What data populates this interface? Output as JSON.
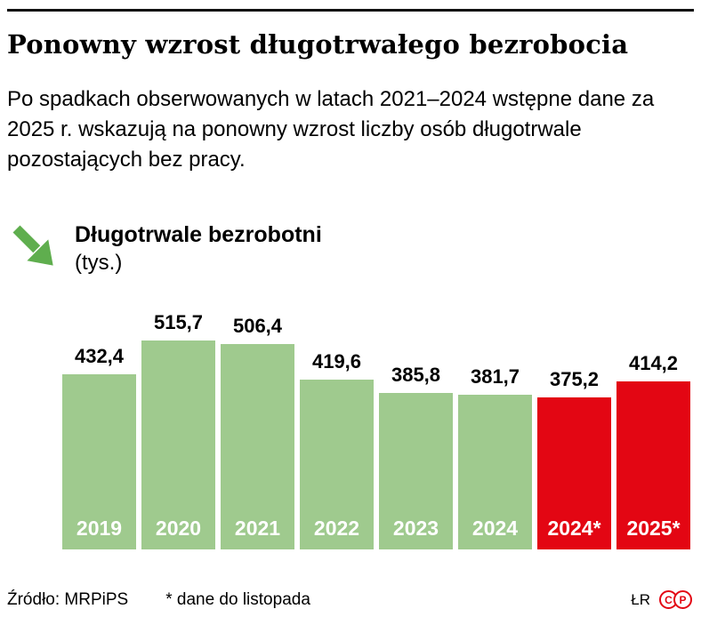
{
  "header": {
    "title": "Ponowny wzrost długotrwałego bezrobocia",
    "intro": "Po spadkach obserwowanych w latach 2021–2024 wstępne dane za 2025 r. wskazują na ponowny wzrost liczby osób długotrwale pozostających bez pracy."
  },
  "legend": {
    "label": "Długotrwale bezrobotni",
    "unit": "(tys.)"
  },
  "chart_data": {
    "type": "bar",
    "title": "Długotrwale bezrobotni",
    "unit": "tys.",
    "categories": [
      "2019",
      "2020",
      "2021",
      "2022",
      "2023",
      "2024",
      "2024*",
      "2025*"
    ],
    "values": [
      432.4,
      515.7,
      506.4,
      419.6,
      385.8,
      381.7,
      375.2,
      414.2
    ],
    "value_labels": [
      "432,4",
      "515,7",
      "506,4",
      "419,6",
      "385,8",
      "381,7",
      "375,2",
      "414,2"
    ],
    "bar_colors": [
      "#9fca8e",
      "#9fca8e",
      "#9fca8e",
      "#9fca8e",
      "#9fca8e",
      "#9fca8e",
      "#e30613",
      "#e30613"
    ],
    "ylim": [
      0,
      515.7
    ],
    "grid": false,
    "legend_position": "none"
  },
  "colors": {
    "green": "#9fca8e",
    "red": "#e30613",
    "arrow": "#5fae4e",
    "rule": "#111111"
  },
  "footer": {
    "source": "Źródło: MRPiPS",
    "note": "* dane do listopada",
    "credit": "ŁR",
    "logo_letters": [
      "C",
      "P"
    ]
  }
}
